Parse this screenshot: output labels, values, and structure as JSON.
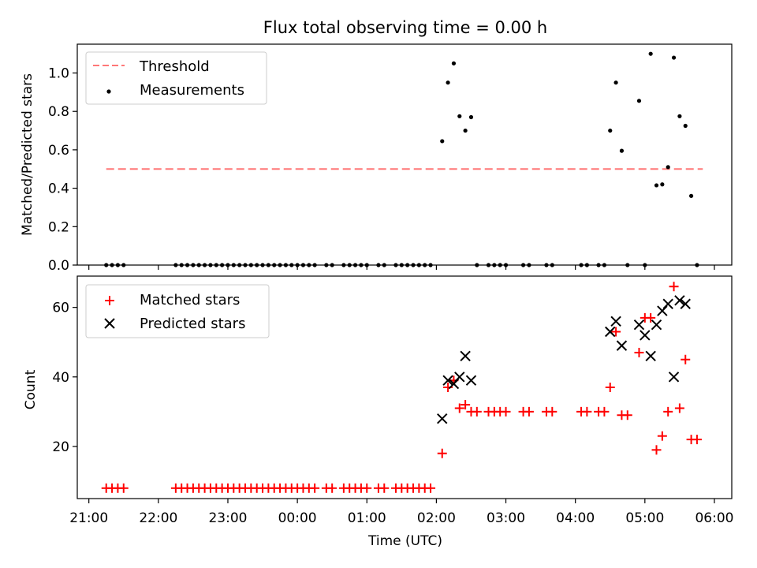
{
  "chart_data": [
    {
      "type": "scatter",
      "title": "Flux total observing time = 0.00 h",
      "ylabel": "Matched/Predicted stars",
      "xlabel": "",
      "ylim": [
        0,
        1.15
      ],
      "yticks": [
        0.0,
        0.2,
        0.4,
        0.6,
        0.8,
        1.0
      ],
      "ytick_labels": [
        "0.0",
        "0.2",
        "0.4",
        "0.6",
        "0.8",
        "1.0"
      ],
      "legend_position": "top-left",
      "threshold": {
        "name": "Threshold",
        "value": 0.5,
        "x_start": "21:15",
        "x_end": "05:50",
        "color": "#ff7777"
      },
      "series": [
        {
          "name": "Measurements",
          "color": "#000000",
          "x": [
            "21:15",
            "21:20",
            "21:25",
            "21:30",
            "22:15",
            "22:20",
            "22:25",
            "22:30",
            "22:35",
            "22:40",
            "22:45",
            "22:50",
            "22:55",
            "23:00",
            "23:05",
            "23:10",
            "23:15",
            "23:20",
            "23:25",
            "23:30",
            "23:35",
            "23:40",
            "23:45",
            "23:50",
            "23:55",
            "00:00",
            "00:05",
            "00:10",
            "00:15",
            "00:25",
            "00:30",
            "00:40",
            "00:45",
            "00:50",
            "00:55",
            "01:00",
            "01:10",
            "01:15",
            "01:25",
            "01:30",
            "01:35",
            "01:40",
            "01:45",
            "01:50",
            "01:55",
            "02:05",
            "02:10",
            "02:15",
            "02:20",
            "02:25",
            "02:30",
            "02:35",
            "02:45",
            "02:50",
            "02:55",
            "03:00",
            "03:15",
            "03:20",
            "03:35",
            "03:40",
            "04:05",
            "04:10",
            "04:20",
            "04:25",
            "04:30",
            "04:35",
            "04:40",
            "04:45",
            "04:55",
            "05:00",
            "05:05",
            "05:10",
            "05:15",
            "05:20",
            "05:25",
            "05:30",
            "05:35",
            "05:40",
            "05:45"
          ],
          "y": [
            0,
            0,
            0,
            0,
            0,
            0,
            0,
            0,
            0,
            0,
            0,
            0,
            0,
            0,
            0,
            0,
            0,
            0,
            0,
            0,
            0,
            0,
            0,
            0,
            0,
            0,
            0,
            0,
            0,
            0,
            0,
            0,
            0,
            0,
            0,
            0,
            0,
            0,
            0,
            0,
            0,
            0,
            0,
            0,
            0,
            0.645,
            0.95,
            1.05,
            0.775,
            0.7,
            0.77,
            0,
            0,
            0,
            0,
            0,
            0,
            0,
            0,
            0,
            0,
            0,
            0,
            0,
            0.7,
            0.95,
            0.595,
            0,
            0.855,
            0,
            1.1,
            0.415,
            0.42,
            0.51,
            1.08,
            0.775,
            0.725,
            0.36,
            0
          ]
        }
      ]
    },
    {
      "type": "scatter",
      "title": "",
      "ylabel": "Count",
      "xlabel": "Time (UTC)",
      "ylim": [
        5,
        69
      ],
      "yticks": [
        20,
        40,
        60
      ],
      "ytick_labels": [
        "20",
        "40",
        "60"
      ],
      "xlim": [
        "20:50",
        "06:15"
      ],
      "xticks": [
        "21:00",
        "22:00",
        "23:00",
        "00:00",
        "01:00",
        "02:00",
        "03:00",
        "04:00",
        "05:00",
        "06:00"
      ],
      "legend_position": "top-left",
      "series": [
        {
          "name": "Matched stars",
          "marker": "plus",
          "color": "#ff0000",
          "x": [
            "21:15",
            "21:20",
            "21:25",
            "21:30",
            "22:15",
            "22:20",
            "22:25",
            "22:30",
            "22:35",
            "22:40",
            "22:45",
            "22:50",
            "22:55",
            "23:00",
            "23:05",
            "23:10",
            "23:15",
            "23:20",
            "23:25",
            "23:30",
            "23:35",
            "23:40",
            "23:45",
            "23:50",
            "23:55",
            "00:00",
            "00:05",
            "00:10",
            "00:15",
            "00:25",
            "00:30",
            "00:40",
            "00:45",
            "00:50",
            "00:55",
            "01:00",
            "01:10",
            "01:15",
            "01:25",
            "01:30",
            "01:35",
            "01:40",
            "01:45",
            "01:50",
            "01:55",
            "02:05",
            "02:10",
            "02:15",
            "02:20",
            "02:25",
            "02:30",
            "02:35",
            "02:45",
            "02:50",
            "02:55",
            "03:00",
            "03:15",
            "03:20",
            "03:35",
            "03:40",
            "04:05",
            "04:10",
            "04:20",
            "04:25",
            "04:30",
            "04:35",
            "04:40",
            "04:45",
            "04:55",
            "05:00",
            "05:05",
            "05:10",
            "05:15",
            "05:20",
            "05:25",
            "05:30",
            "05:35",
            "05:40",
            "05:45"
          ],
          "y": [
            8,
            8,
            8,
            8,
            8,
            8,
            8,
            8,
            8,
            8,
            8,
            8,
            8,
            8,
            8,
            8,
            8,
            8,
            8,
            8,
            8,
            8,
            8,
            8,
            8,
            8,
            8,
            8,
            8,
            8,
            8,
            8,
            8,
            8,
            8,
            8,
            8,
            8,
            8,
            8,
            8,
            8,
            8,
            8,
            8,
            18,
            37,
            39,
            31,
            32,
            30,
            30,
            30,
            30,
            30,
            30,
            30,
            30,
            30,
            30,
            30,
            30,
            30,
            30,
            37,
            53,
            29,
            29,
            47,
            57,
            57,
            19,
            23,
            30,
            66,
            31,
            45,
            22,
            22
          ]
        },
        {
          "name": "Predicted stars",
          "marker": "x",
          "color": "#000000",
          "x": [
            "02:05",
            "02:10",
            "02:15",
            "02:20",
            "02:25",
            "02:30",
            "04:30",
            "04:35",
            "04:40",
            "04:55",
            "05:00",
            "05:05",
            "05:10",
            "05:15",
            "05:20",
            "05:25",
            "05:30",
            "05:35"
          ],
          "y": [
            28,
            39,
            38,
            40,
            46,
            39,
            53,
            56,
            49,
            55,
            52,
            46,
            55,
            59,
            61,
            40,
            62,
            61
          ]
        }
      ]
    }
  ]
}
